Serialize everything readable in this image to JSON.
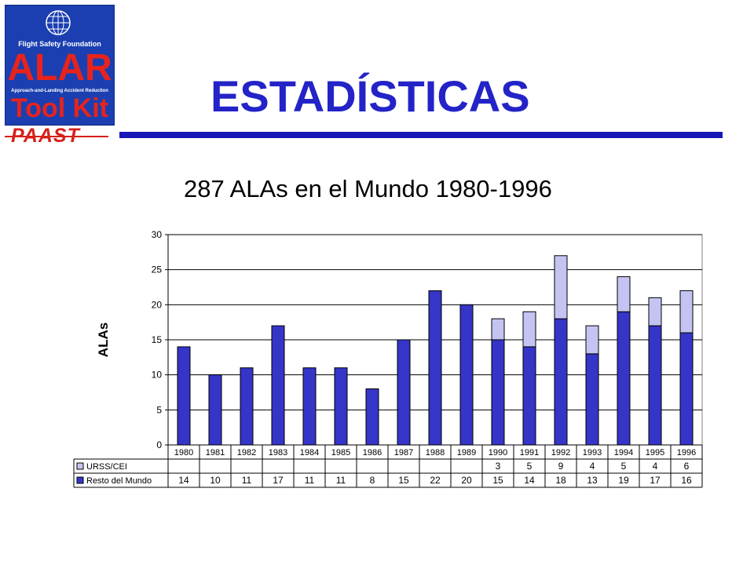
{
  "header": {
    "logo": {
      "org": "Flight Safety Foundation",
      "main": "ALAR",
      "sub": "Approach-and-Landing Accident Reduction",
      "kit": "Tool Kit"
    },
    "badge": "PAAST",
    "title": "ESTADÍSTICAS"
  },
  "colors": {
    "title": "#2323c8",
    "rule": "#1717b8",
    "logo_bg": "#1b3fb0",
    "logo_text": "#e8231c",
    "resto": "#3535c8",
    "urss": "#c4c4f2"
  },
  "chart_data": {
    "type": "bar",
    "stacked": true,
    "title": "287 ALAs en el Mundo  1980-1996",
    "ylabel": "ALAs",
    "xlabel": "",
    "ylim": [
      0,
      30
    ],
    "yticks": [
      0,
      5,
      10,
      15,
      20,
      25,
      30
    ],
    "grid": true,
    "categories": [
      "1980",
      "1981",
      "1982",
      "1983",
      "1984",
      "1985",
      "1986",
      "1987",
      "1988",
      "1989",
      "1990",
      "1991",
      "1992",
      "1993",
      "1994",
      "1995",
      "1996"
    ],
    "series": [
      {
        "name": "Resto del Mundo",
        "color": "#3535c8",
        "values": [
          14,
          10,
          11,
          17,
          11,
          11,
          8,
          15,
          22,
          20,
          15,
          14,
          18,
          13,
          19,
          17,
          16
        ]
      },
      {
        "name": "URSS/CEI",
        "color": "#c4c4f2",
        "values": [
          null,
          null,
          null,
          null,
          null,
          null,
          null,
          null,
          null,
          null,
          3,
          5,
          9,
          4,
          5,
          4,
          6
        ]
      }
    ],
    "data_table": true
  }
}
